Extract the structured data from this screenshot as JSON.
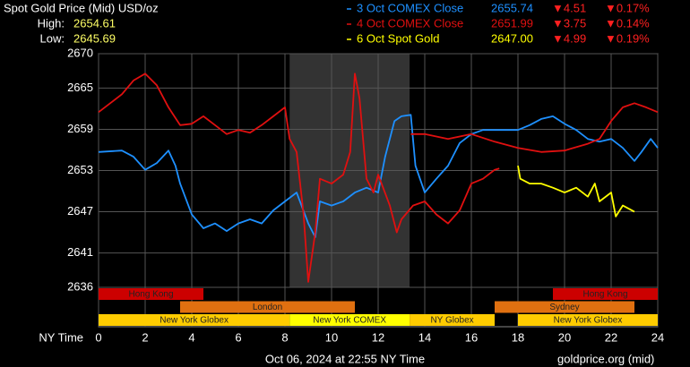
{
  "chart_data": {
    "type": "line",
    "title": "Spot Gold Price (Mid) USD/oz",
    "high_label": "High:",
    "high": 2654.61,
    "low_label": "Low:",
    "low": 2645.69,
    "xlabel": "NY Time",
    "footer": "Oct 06, 2024 at 22:55 NY Time",
    "source": "goldprice.org (mid)",
    "xlim": [
      0,
      24
    ],
    "xticks": [
      0,
      2,
      4,
      6,
      8,
      10,
      12,
      14,
      16,
      18,
      20,
      22,
      24
    ],
    "ylim": [
      2636,
      2670
    ],
    "yticks": [
      2636,
      2641,
      2647,
      2653,
      2659,
      2665,
      2670
    ],
    "grid": true,
    "shade": [
      8.2,
      13.35
    ],
    "series": [
      {
        "name": "3 Oct COMEX Close",
        "color": "#1e90ff",
        "close": "2655.74",
        "change": "▼4.51",
        "pct": "▼0.17%",
        "x": [
          0,
          1,
          1.5,
          2,
          2.5,
          3,
          3.3,
          3.5,
          4,
          4.5,
          5,
          5.5,
          6,
          6.5,
          7,
          7.5,
          8,
          8.5,
          9,
          9.3,
          9.5,
          10,
          10.5,
          11,
          11.5,
          12,
          12.3,
          12.7,
          13,
          13.4,
          13.6,
          14,
          14.5,
          15,
          15.5,
          16,
          16.5,
          17,
          18,
          18.5,
          19,
          19.5,
          20,
          20.5,
          21,
          21.5,
          22,
          22.5,
          23,
          23.3,
          23.7,
          24
        ],
        "values": [
          2655.7,
          2655.9,
          2655.0,
          2653.1,
          2654.1,
          2655.9,
          2653.7,
          2651.1,
          2646.6,
          2644.6,
          2645.3,
          2644.2,
          2645.3,
          2645.9,
          2645.3,
          2647.2,
          2648.5,
          2649.8,
          2645.3,
          2643.3,
          2648.5,
          2647.9,
          2648.5,
          2649.8,
          2650.5,
          2649.8,
          2655.0,
          2660.2,
          2660.9,
          2661.1,
          2653.7,
          2649.8,
          2651.8,
          2653.7,
          2657.0,
          2658.3,
          2658.9,
          2658.9,
          2658.9,
          2659.6,
          2660.5,
          2660.9,
          2659.8,
          2658.9,
          2657.6,
          2657.2,
          2657.6,
          2656.3,
          2654.4,
          2655.7,
          2657.6,
          2656.3
        ]
      },
      {
        "name": "4 Oct COMEX Close",
        "color": "#e01010",
        "close": "2651.99",
        "change": "▼3.75",
        "pct": "▼0.14%",
        "x": [
          0,
          0.5,
          1,
          1.5,
          2,
          2.5,
          3,
          3.5,
          4,
          4.5,
          5,
          5.5,
          6,
          6.5,
          7,
          7.5,
          8,
          8.2,
          8.5,
          8.8,
          9,
          9.3,
          9.5,
          10,
          10.5,
          10.8,
          11,
          11.2,
          11.5,
          11.8,
          12,
          12.5,
          12.8,
          13,
          13.5,
          14,
          14.5,
          15,
          15.5,
          16,
          16.5,
          17,
          17.2,
          null,
          13.4,
          14,
          15,
          16,
          17,
          18,
          19,
          20,
          21,
          21.5,
          22,
          22.5,
          23,
          23.5,
          24
        ],
        "values": [
          2661.5,
          2662.8,
          2664.1,
          2666.1,
          2667.1,
          2665.4,
          2662.2,
          2659.6,
          2659.8,
          2660.9,
          2659.6,
          2658.3,
          2658.9,
          2658.5,
          2659.6,
          2660.9,
          2662.2,
          2657.6,
          2655.7,
          2646.6,
          2636.8,
          2644.0,
          2651.8,
          2651.1,
          2652.4,
          2655.7,
          2667.1,
          2663.5,
          2651.8,
          2649.8,
          2652.4,
          2647.9,
          2644.0,
          2645.9,
          2647.9,
          2648.5,
          2646.6,
          2645.3,
          2647.2,
          2651.1,
          2651.8,
          2653.1,
          2653.3,
          null,
          2658.3,
          2658.3,
          2657.6,
          2658.3,
          2657.2,
          2656.3,
          2655.7,
          2655.9,
          2656.9,
          2657.6,
          2660.2,
          2662.2,
          2662.8,
          2662.2,
          2661.5
        ]
      },
      {
        "name": "6 Oct Spot Gold",
        "color": "#ffff00",
        "close": "2647.00",
        "change": "▼4.99",
        "pct": "▼0.19%",
        "x": [
          18,
          18.1,
          18.5,
          19,
          19.5,
          20,
          20.5,
          21,
          21.3,
          21.5,
          22,
          22.2,
          22.5,
          23
        ],
        "values": [
          2653.7,
          2651.8,
          2651.1,
          2651.1,
          2650.5,
          2649.8,
          2650.5,
          2649.2,
          2651.1,
          2648.5,
          2649.8,
          2646.3,
          2647.9,
          2647.0
        ]
      }
    ],
    "sessions": [
      {
        "name": "Hong Kong",
        "row": 0,
        "start": 0,
        "end": 4.5,
        "color": "#cc0000"
      },
      {
        "name": "Hong Kong",
        "row": 0,
        "start": 19.5,
        "end": 24,
        "color": "#cc0000"
      },
      {
        "name": "London",
        "row": 1,
        "start": 3.5,
        "end": 11,
        "color": "#e07010"
      },
      {
        "name": "Sydney",
        "row": 1,
        "start": 17,
        "end": 23,
        "color": "#e07010"
      },
      {
        "name": "New York Globex",
        "row": 2,
        "start": 0,
        "end": 8.2,
        "color": "#ffcc00"
      },
      {
        "name": "New York COMEX",
        "row": 2,
        "start": 8.2,
        "end": 13.35,
        "color": "#ffff00"
      },
      {
        "name": "NY Globex",
        "row": 2,
        "start": 13.35,
        "end": 17,
        "color": "#ffcc00"
      },
      {
        "name": "New York Globex",
        "row": 2,
        "start": 18,
        "end": 24,
        "color": "#ffcc00"
      }
    ]
  }
}
